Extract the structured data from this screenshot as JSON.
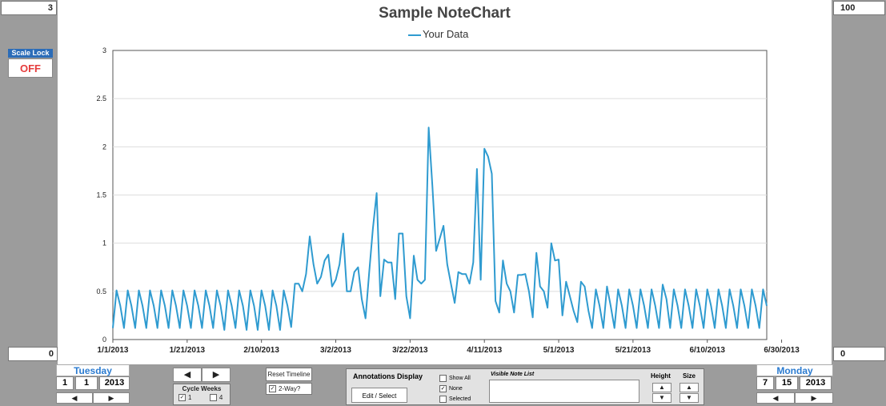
{
  "corners": {
    "top_left": "3",
    "top_right": "100",
    "bottom_left": "0",
    "bottom_right": "0"
  },
  "scale_lock": {
    "label": "Scale Lock",
    "value": "OFF"
  },
  "chart": {
    "title": "Sample NoteChart",
    "legend": "Your Data"
  },
  "start_date": {
    "day": "Tuesday",
    "month": "1",
    "date": "1",
    "year": "2013"
  },
  "end_date": {
    "day": "Monday",
    "month": "7",
    "date": "15",
    "year": "2013"
  },
  "cycle": {
    "label": "Cycle Weeks",
    "opt1": "1",
    "opt4": "4"
  },
  "timeline": {
    "reset": "Reset Timeline",
    "two_way": "2-Way?"
  },
  "annotations": {
    "title": "Annotations Display",
    "edit_button": "Edit / Select",
    "show_all": "Show All",
    "none": "None",
    "selected": "Selected",
    "note_list": "Visible Note List",
    "height": "Height",
    "size": "Size"
  },
  "colors": {
    "series": "#2f9bd0",
    "scale_off": "#e53c3c",
    "accent": "#2b7bd0"
  },
  "chart_data": {
    "type": "line",
    "title": "Sample NoteChart",
    "ylim": [
      0,
      3
    ],
    "yticks": [
      "0",
      "0.5",
      "1",
      "1.5",
      "2",
      "2.5",
      "3"
    ],
    "xticks": [
      "1/1/2013",
      "1/21/2013",
      "2/10/2013",
      "3/2/2013",
      "3/22/2013",
      "4/11/2013",
      "5/1/2013",
      "5/21/2013",
      "6/10/2013",
      "6/30/2013"
    ],
    "grid": true,
    "legend_position": "top-center",
    "series": [
      {
        "name": "Your Data",
        "values": [
          0.12,
          0.51,
          0.35,
          0.12,
          0.51,
          0.35,
          0.12,
          0.51,
          0.35,
          0.12,
          0.51,
          0.35,
          0.12,
          0.51,
          0.35,
          0.12,
          0.51,
          0.35,
          0.12,
          0.51,
          0.35,
          0.12,
          0.51,
          0.35,
          0.12,
          0.51,
          0.35,
          0.12,
          0.51,
          0.35,
          0.1,
          0.51,
          0.35,
          0.12,
          0.51,
          0.35,
          0.1,
          0.51,
          0.35,
          0.1,
          0.51,
          0.35,
          0.1,
          0.51,
          0.35,
          0.1,
          0.51,
          0.35,
          0.13,
          0.58,
          0.58,
          0.5,
          0.68,
          1.07,
          0.78,
          0.58,
          0.65,
          0.82,
          0.88,
          0.55,
          0.62,
          0.78,
          1.1,
          0.5,
          0.5,
          0.7,
          0.75,
          0.42,
          0.22,
          0.7,
          1.15,
          1.52,
          0.45,
          0.83,
          0.8,
          0.8,
          0.42,
          1.1,
          1.1,
          0.45,
          0.22,
          0.87,
          0.62,
          0.58,
          0.62,
          2.2,
          1.6,
          0.92,
          1.05,
          1.18,
          0.78,
          0.58,
          0.38,
          0.7,
          0.68,
          0.68,
          0.58,
          0.8,
          1.77,
          0.62,
          1.98,
          1.9,
          1.72,
          0.4,
          0.28,
          0.82,
          0.58,
          0.5,
          0.28,
          0.67,
          0.67,
          0.68,
          0.5,
          0.23,
          0.9,
          0.55,
          0.5,
          0.33,
          1.0,
          0.82,
          0.83,
          0.25,
          0.6,
          0.45,
          0.3,
          0.18,
          0.6,
          0.55,
          0.3,
          0.12,
          0.52,
          0.35,
          0.12,
          0.55,
          0.35,
          0.12,
          0.52,
          0.35,
          0.12,
          0.52,
          0.35,
          0.12,
          0.52,
          0.35,
          0.12,
          0.52,
          0.35,
          0.12,
          0.57,
          0.42,
          0.12,
          0.52,
          0.35,
          0.12,
          0.52,
          0.35,
          0.12,
          0.52,
          0.35,
          0.12,
          0.52,
          0.35,
          0.12,
          0.52,
          0.35,
          0.12,
          0.52,
          0.35,
          0.12,
          0.52,
          0.35,
          0.12,
          0.52,
          0.35,
          0.12,
          0.52,
          0.35
        ]
      }
    ]
  }
}
